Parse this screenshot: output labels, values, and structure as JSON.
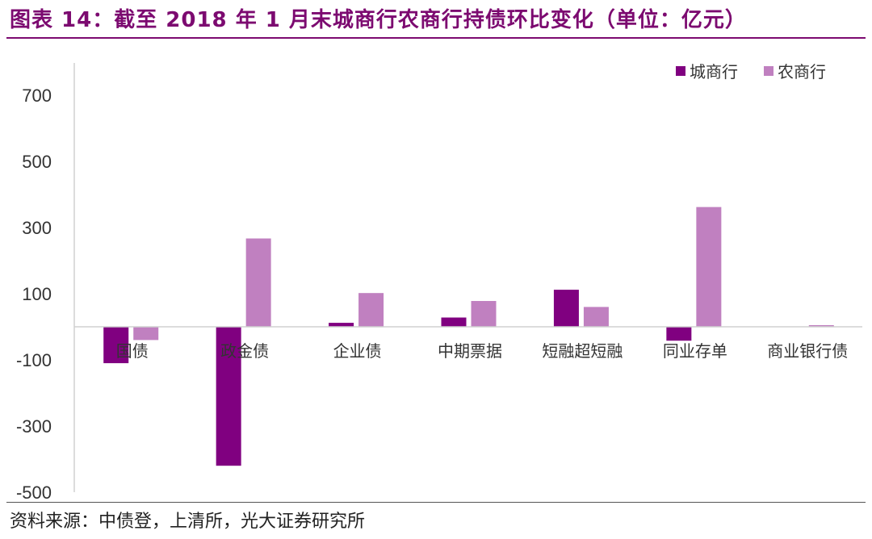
{
  "title": "图表 14：截至 2018 年 1 月末城商行农商行持债环比变化（单位：亿元）",
  "source": "资料来源：中债登，上清所，光大证券研究所",
  "colors": {
    "title": "#7c0a70",
    "series1": "#800080",
    "series2": "#c080c0"
  },
  "chart_data": {
    "type": "bar",
    "title": "",
    "xlabel": "",
    "ylabel": "",
    "ylim": [
      -500,
      700
    ],
    "yticks": [
      700,
      500,
      300,
      100,
      -100,
      -300,
      -500
    ],
    "grid": false,
    "legend_position": "top-right",
    "categories": [
      "国债",
      "政金债",
      "企业债",
      "中期票据",
      "短融超短融",
      "同业存单",
      "商业银行债"
    ],
    "series": [
      {
        "name": "城商行",
        "values": [
          -110,
          -420,
          12,
          28,
          112,
          -42,
          0
        ]
      },
      {
        "name": "农商行",
        "values": [
          -40,
          267,
          102,
          78,
          60,
          362,
          5
        ]
      }
    ]
  }
}
